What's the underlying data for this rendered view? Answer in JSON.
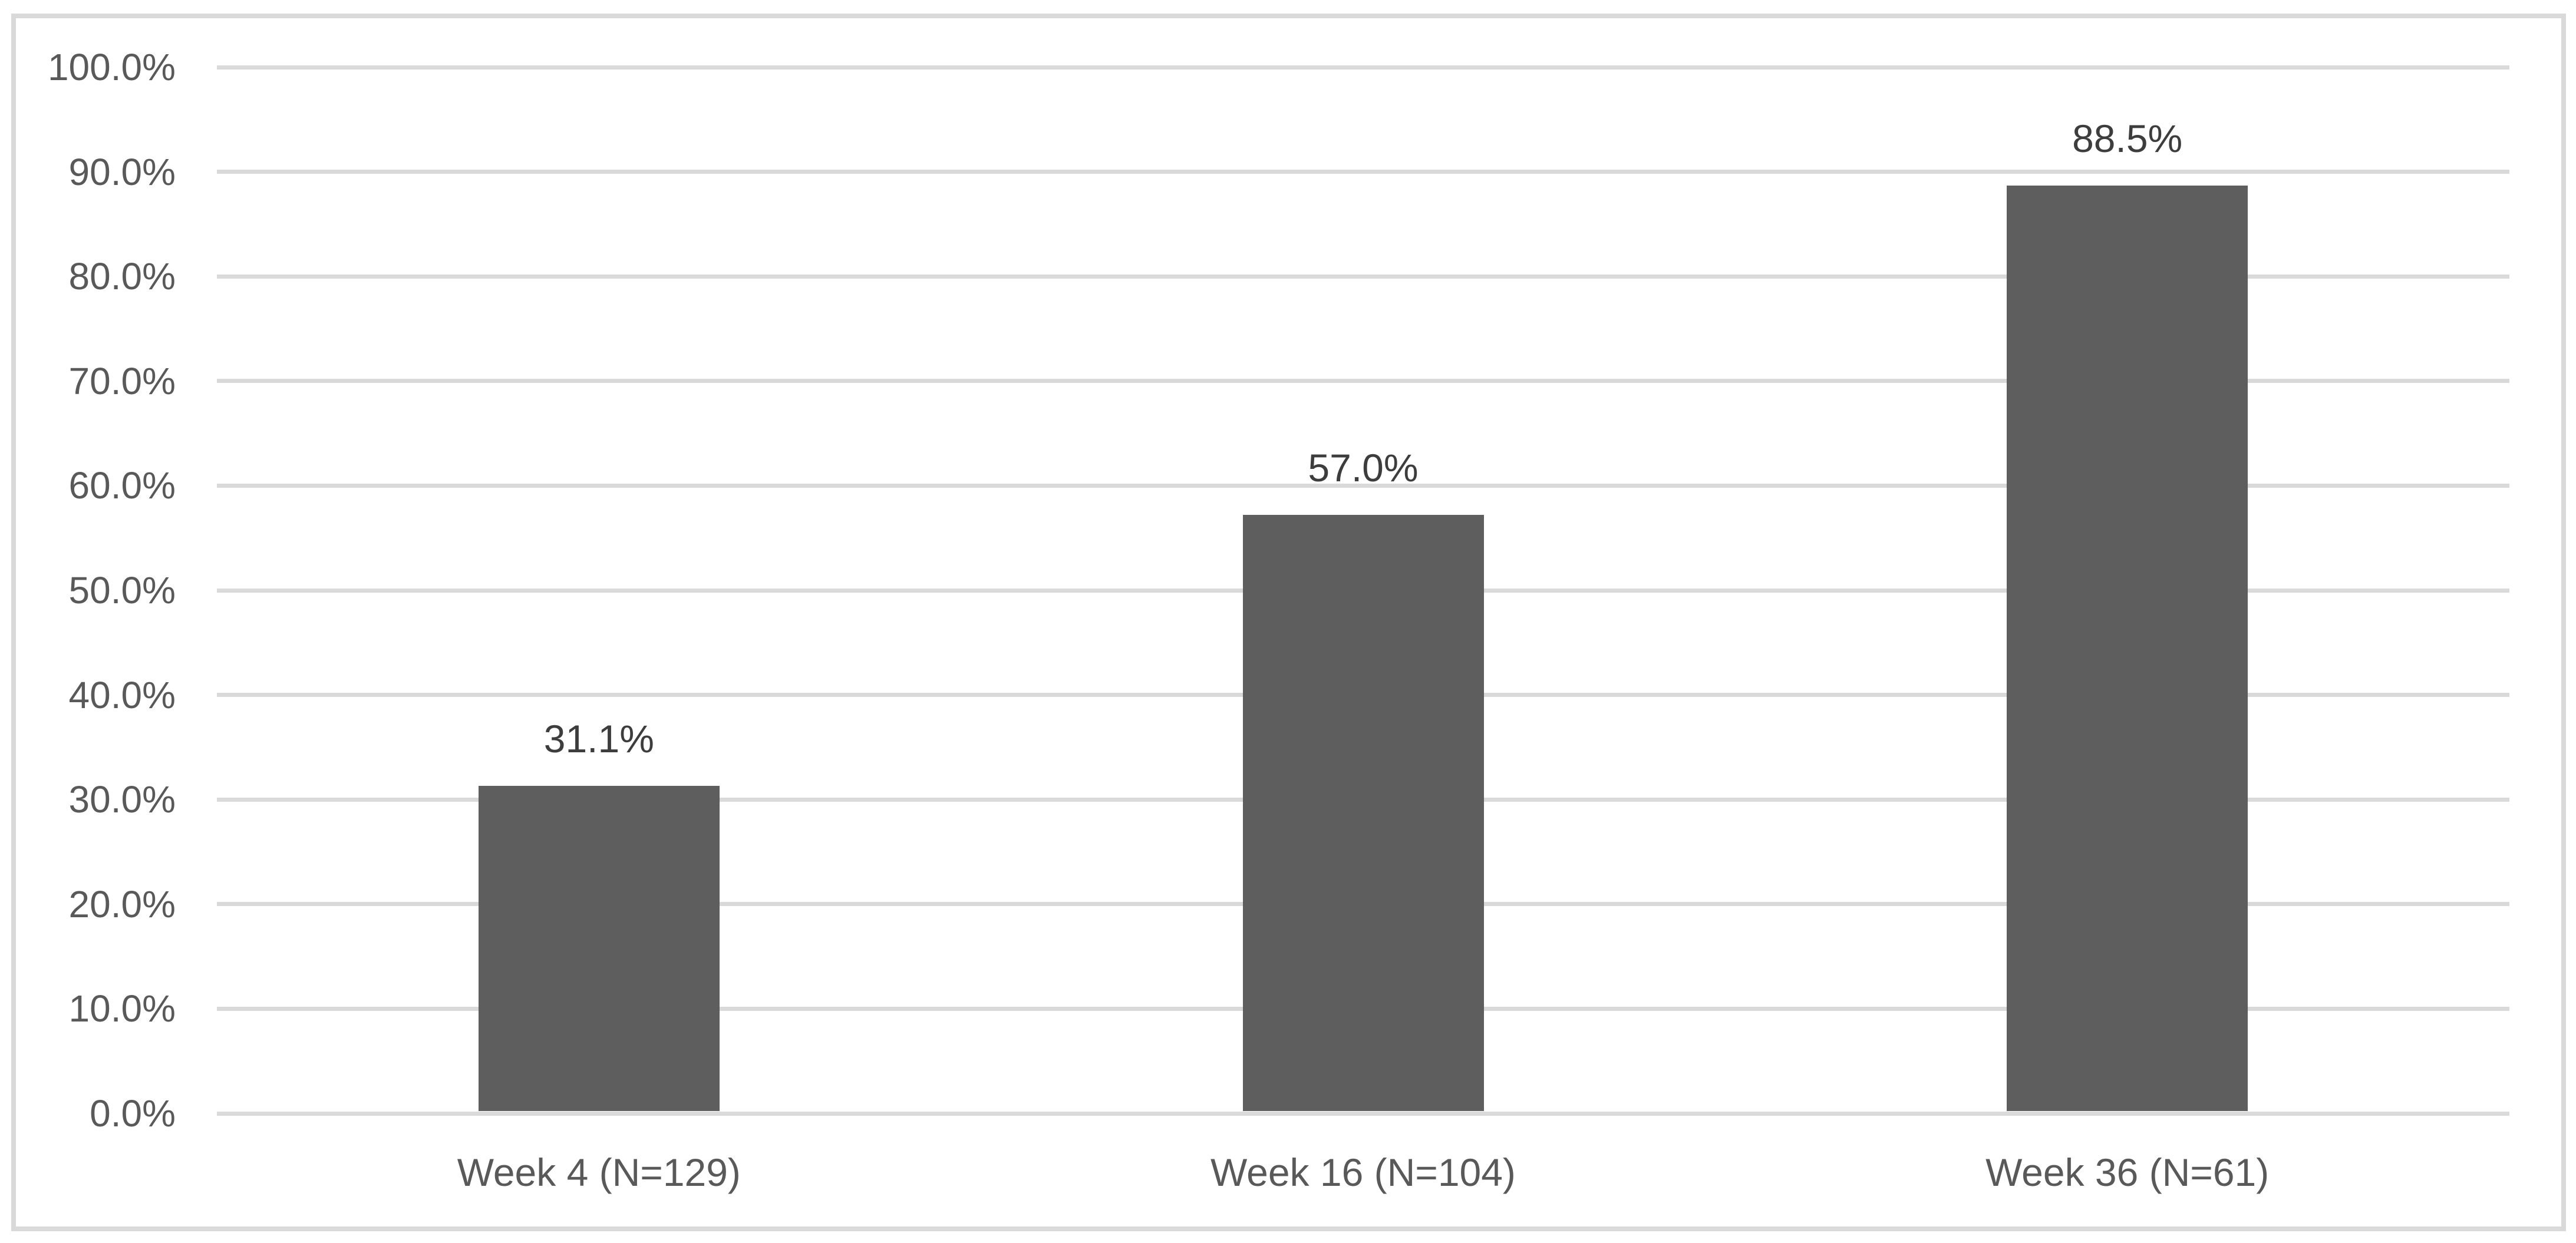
{
  "chart_data": {
    "type": "bar",
    "title": "",
    "xlabel": "",
    "ylabel": "",
    "categories": [
      "Week 4 (N=129)",
      "Week 16 (N=104)",
      "Week 36 (N=61)"
    ],
    "values": [
      31.1,
      57.0,
      88.5
    ],
    "data_labels": [
      "31.1%",
      "57.0%",
      "88.5%"
    ],
    "ylim": [
      0,
      100
    ],
    "ytick_interval": 10,
    "ytick_labels": [
      "0.0%",
      "10.0%",
      "20.0%",
      "30.0%",
      "40.0%",
      "50.0%",
      "60.0%",
      "70.0%",
      "80.0%",
      "90.0%",
      "100.0%"
    ],
    "grid": "horizontal",
    "legend": "none",
    "colors": {
      "bar_fill": "#5e5e5e",
      "gridline": "#d9d9d9",
      "frame_border": "#d9d9d9",
      "axis_label_text": "#595959",
      "data_label_text": "#3d3d3d",
      "background": "#ffffff"
    }
  }
}
